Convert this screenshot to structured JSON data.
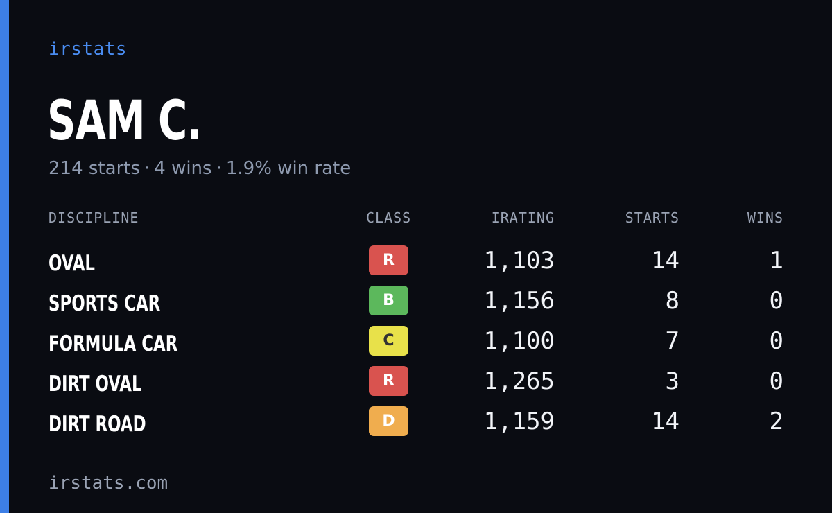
{
  "brand": "irstats",
  "driver": {
    "name": "SAM C.",
    "starts_text": "214 starts",
    "wins_text": "4 wins",
    "win_rate_text": "1.9% win rate",
    "separator": "·"
  },
  "table": {
    "headers": {
      "discipline": "DISCIPLINE",
      "class": "CLASS",
      "irating": "IRATING",
      "starts": "STARTS",
      "wins": "WINS"
    },
    "rows": [
      {
        "discipline": "OVAL",
        "class": "R",
        "class_color": "#d9534f",
        "class_text_color": "#ffffff",
        "irating": "1,103",
        "starts": "14",
        "wins": "1"
      },
      {
        "discipline": "SPORTS CAR",
        "class": "B",
        "class_color": "#5cb85c",
        "class_text_color": "#ffffff",
        "irating": "1,156",
        "starts": "8",
        "wins": "0"
      },
      {
        "discipline": "FORMULA CAR",
        "class": "C",
        "class_color": "#e8e14a",
        "class_text_color": "#333333",
        "irating": "1,100",
        "starts": "7",
        "wins": "0"
      },
      {
        "discipline": "DIRT OVAL",
        "class": "R",
        "class_color": "#d9534f",
        "class_text_color": "#ffffff",
        "irating": "1,265",
        "starts": "3",
        "wins": "0"
      },
      {
        "discipline": "DIRT ROAD",
        "class": "D",
        "class_color": "#f0ad4e",
        "class_text_color": "#ffffff",
        "irating": "1,159",
        "starts": "14",
        "wins": "2"
      }
    ]
  },
  "footer": "irstats.com",
  "colors": {
    "accent": "#3d7fe6",
    "background": "#0a0c12"
  }
}
